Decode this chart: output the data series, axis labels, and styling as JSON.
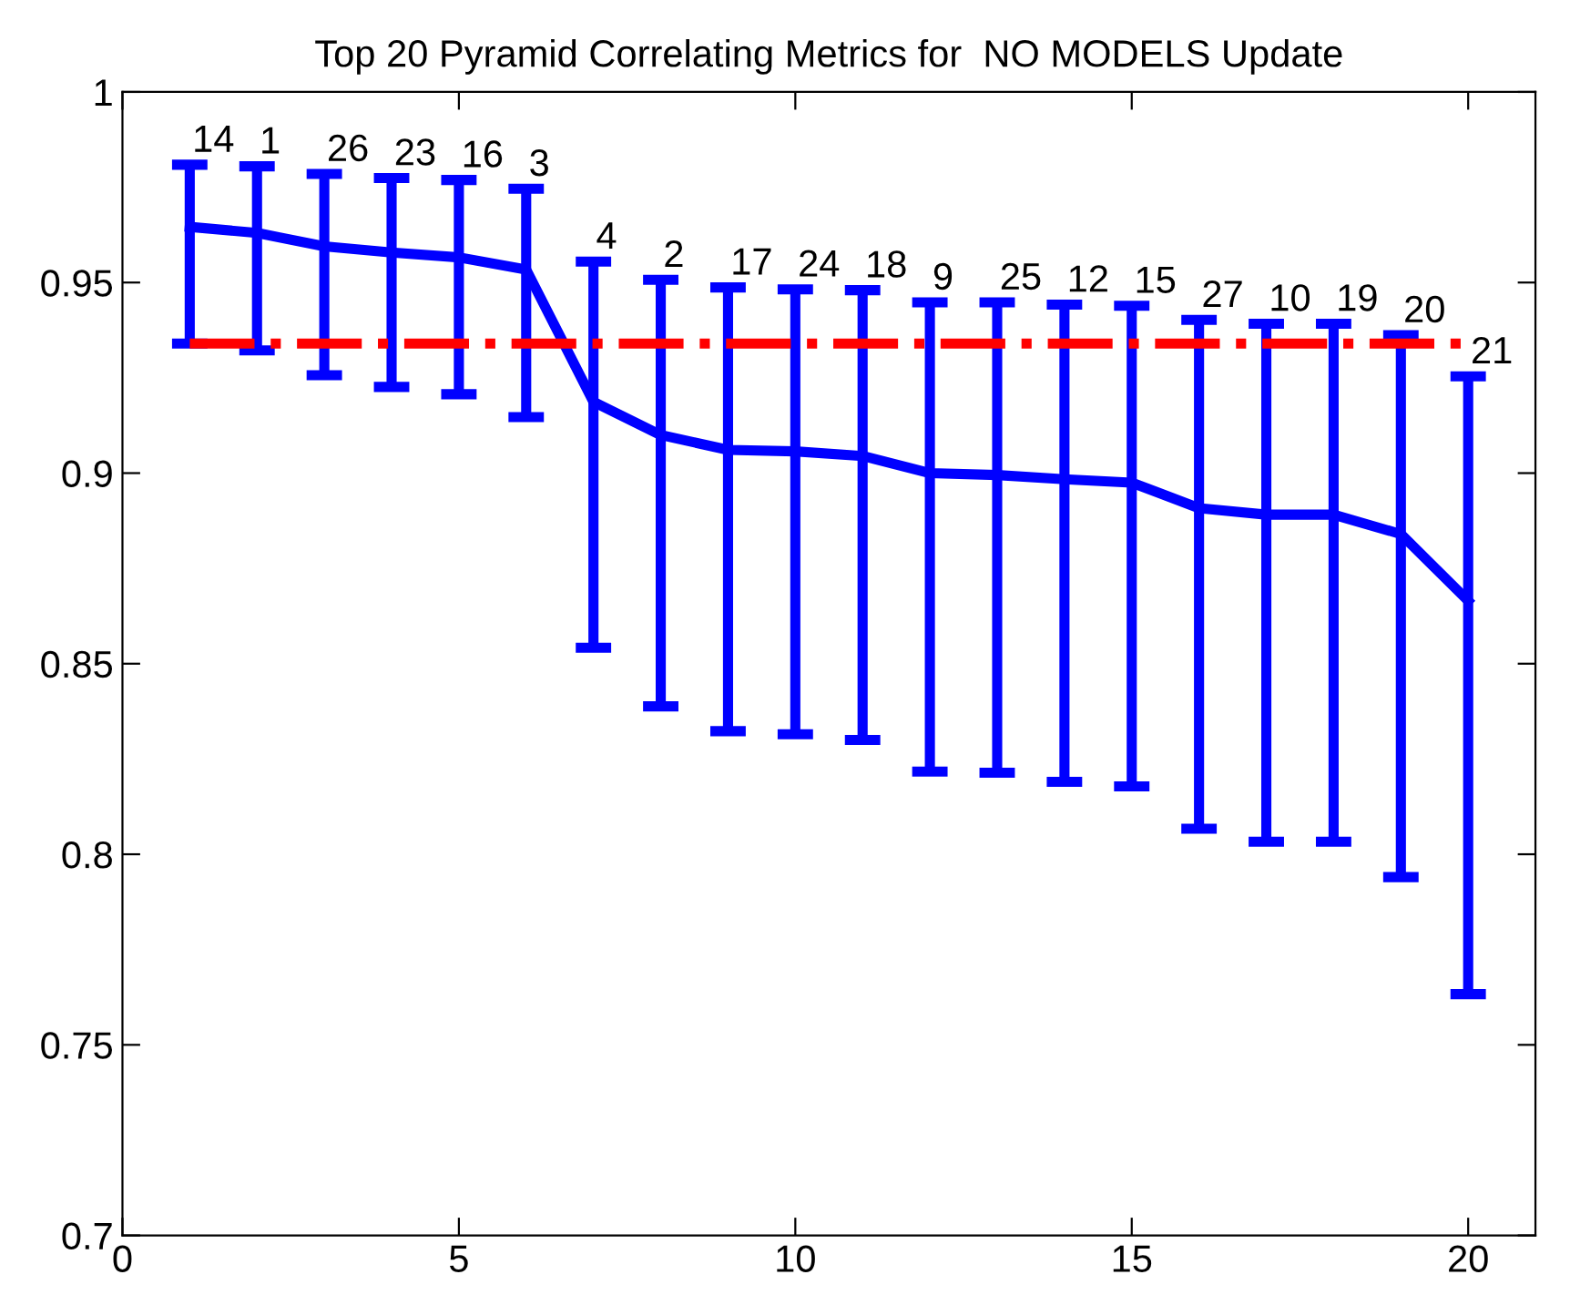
{
  "chart_data": {
    "type": "line",
    "title": "Top 20 Pyramid Correlating Metrics for  NO MODELS Update",
    "x": [
      1,
      2,
      3,
      4,
      5,
      6,
      7,
      8,
      9,
      10,
      11,
      12,
      13,
      14,
      15,
      16,
      17,
      18,
      19,
      20
    ],
    "series": [
      {
        "color": "#0000ff",
        "values": [
          0.9646,
          0.963,
          0.9595,
          0.9579,
          0.9566,
          0.9534,
          0.9187,
          0.91,
          0.9061,
          0.9057,
          0.9045,
          0.9,
          0.8995,
          0.8984,
          0.8975,
          0.8908,
          0.8891,
          0.8891,
          0.884,
          0.8665
        ],
        "errors": [
          [
            0.934,
            0.9809
          ],
          [
            0.9322,
            0.9805
          ],
          [
            0.9257,
            0.9785
          ],
          [
            0.9226,
            0.9774
          ],
          [
            0.9207,
            0.9769
          ],
          [
            0.9147,
            0.9746
          ],
          [
            0.8542,
            0.9555
          ],
          [
            0.8388,
            0.9507
          ],
          [
            0.8323,
            0.9487
          ],
          [
            0.8315,
            0.9482
          ],
          [
            0.83,
            0.948
          ],
          [
            0.8217,
            0.9448
          ],
          [
            0.8214,
            0.9448
          ],
          [
            0.819,
            0.9442
          ],
          [
            0.8178,
            0.9439
          ],
          [
            0.8067,
            0.9402
          ],
          [
            0.8033,
            0.9392
          ],
          [
            0.8033,
            0.9392
          ],
          [
            0.794,
            0.9362
          ],
          [
            0.7633,
            0.9254
          ]
        ]
      }
    ],
    "ref_lines": [
      {
        "axis": "y",
        "value": 0.934,
        "color": "#ff0000",
        "line_style": "dashdot"
      }
    ],
    "annotations": [
      {
        "text": "14",
        "x": 1,
        "y": 0.9809
      },
      {
        "text": "1",
        "x": 2,
        "y": 0.9805
      },
      {
        "text": "26",
        "x": 3,
        "y": 0.9785
      },
      {
        "text": "23",
        "x": 4,
        "y": 0.9774
      },
      {
        "text": "16",
        "x": 5,
        "y": 0.9769
      },
      {
        "text": "3",
        "x": 6,
        "y": 0.9746
      },
      {
        "text": "4",
        "x": 7,
        "y": 0.9555
      },
      {
        "text": "2",
        "x": 8,
        "y": 0.9507
      },
      {
        "text": "17",
        "x": 9,
        "y": 0.9487
      },
      {
        "text": "24",
        "x": 10,
        "y": 0.9482
      },
      {
        "text": "18",
        "x": 11,
        "y": 0.948
      },
      {
        "text": "9",
        "x": 12,
        "y": 0.9448
      },
      {
        "text": "25",
        "x": 13,
        "y": 0.9448
      },
      {
        "text": "12",
        "x": 14,
        "y": 0.9442
      },
      {
        "text": "15",
        "x": 15,
        "y": 0.9439
      },
      {
        "text": "27",
        "x": 16,
        "y": 0.9402
      },
      {
        "text": "10",
        "x": 17,
        "y": 0.9392
      },
      {
        "text": "19",
        "x": 18,
        "y": 0.9392
      },
      {
        "text": "20",
        "x": 19,
        "y": 0.9362
      },
      {
        "text": "21",
        "x": 20,
        "y": 0.9254
      }
    ],
    "xlim": [
      0,
      21
    ],
    "xticks": [
      0,
      5,
      10,
      15,
      20
    ],
    "ylim": [
      0.7,
      1
    ],
    "yticks": [
      0.7,
      0.75,
      0.8,
      0.85,
      0.9,
      0.95,
      1
    ],
    "grid": false,
    "legend": false,
    "marker": "none",
    "line_style": "solid"
  }
}
